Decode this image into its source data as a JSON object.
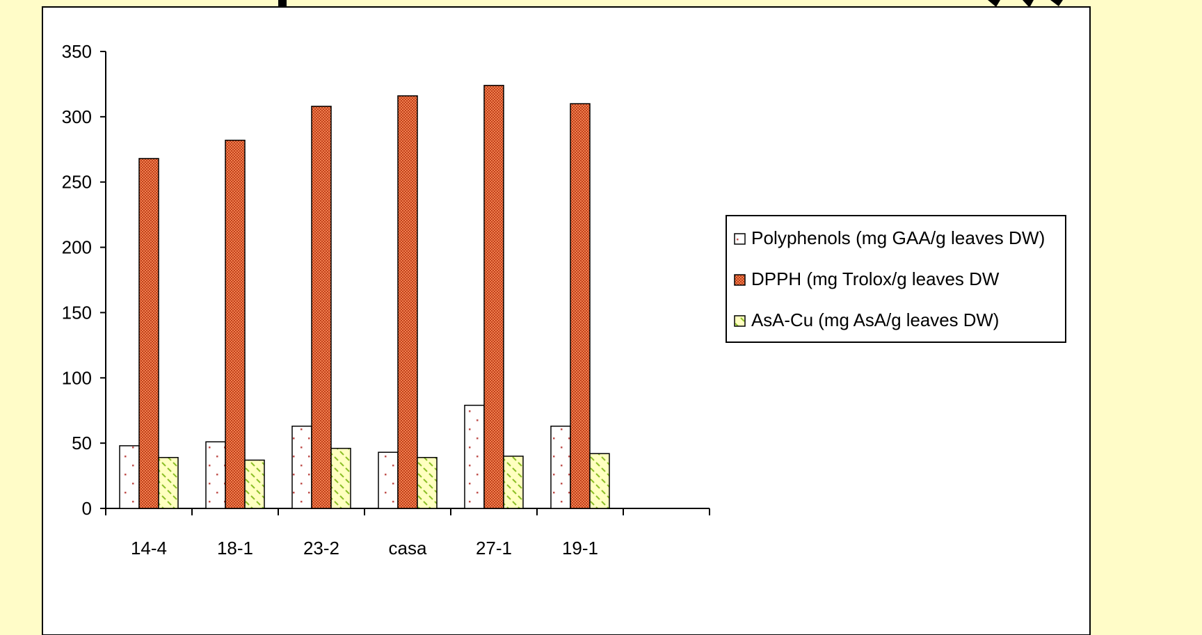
{
  "colors": {
    "slide_background": "#fffcc8",
    "plot_background": "#ffffff",
    "title_text": "#000000",
    "polyphenols_fill": "#ffffff",
    "polyphenols_dots": "#c0504d",
    "dpph_fill": "#f08050",
    "dpph_pattern": "#c0401a",
    "asacu_fill": "#ffffc0",
    "asacu_pattern": "#8cbf26"
  },
  "chart_data": {
    "type": "bar",
    "title": "",
    "xlabel": "",
    "ylabel": "",
    "categories": [
      "14-4",
      "18-1",
      "23-2",
      "casa",
      "27-1",
      "19-1"
    ],
    "x_slots": 7,
    "series": [
      {
        "name": "Polyphenols (mg GAA/g leaves DW)",
        "values": [
          48,
          51,
          63,
          43,
          79,
          63
        ],
        "pattern": "dots"
      },
      {
        "name": "DPPH (mg Trolox/g leaves DW",
        "values": [
          268,
          282,
          308,
          316,
          324,
          310
        ],
        "pattern": "checker"
      },
      {
        "name": "AsA-Cu (mg AsA/g leaves DW)",
        "values": [
          39,
          37,
          46,
          39,
          40,
          42
        ],
        "pattern": "dashes"
      }
    ],
    "ylim": [
      0,
      350
    ],
    "yticks": [
      0,
      50,
      100,
      150,
      200,
      250,
      300,
      350
    ],
    "grid": false,
    "legend_position": "right"
  }
}
